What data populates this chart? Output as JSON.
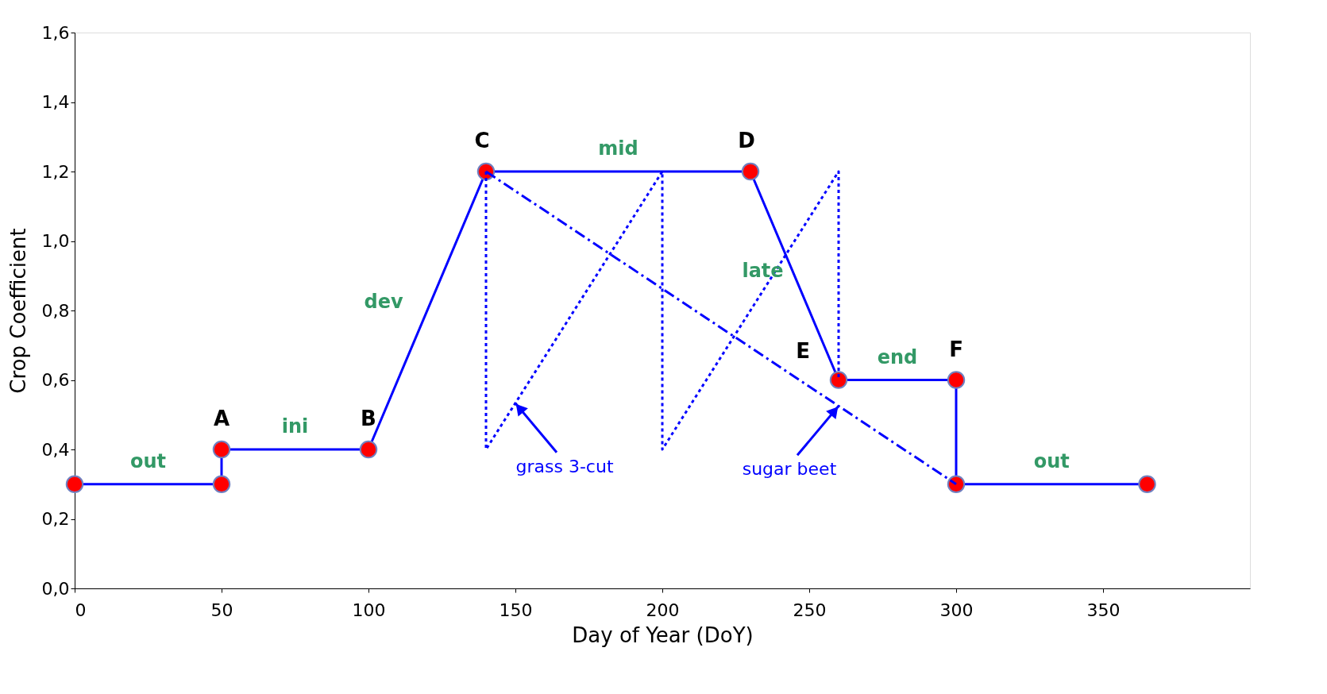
{
  "chart_data": {
    "type": "line",
    "xlabel": "Day of Year (DoY)",
    "ylabel": "Crop Coefficient",
    "xlim": [
      0,
      400
    ],
    "xticks": [
      0,
      50,
      100,
      150,
      200,
      250,
      300,
      350
    ],
    "ylim": [
      0,
      1.6
    ],
    "yticks": [
      {
        "value": 0,
        "label": "0,0"
      },
      {
        "value": 0.2,
        "label": "0,2"
      },
      {
        "value": 0.4,
        "label": "0,4"
      },
      {
        "value": 0.6,
        "label": "0,6"
      },
      {
        "value": 0.8,
        "label": "0,8"
      },
      {
        "value": 1.0,
        "label": "1,0"
      },
      {
        "value": 1.2,
        "label": "1,2"
      },
      {
        "value": 1.4,
        "label": "1,4"
      },
      {
        "value": 1.6,
        "label": "1,6"
      }
    ],
    "grid": false,
    "series": [
      {
        "color": "#0000ff",
        "marker": "circle",
        "line_style": "solid",
        "x": [
          0,
          50,
          50,
          100,
          140,
          230,
          260,
          300,
          300,
          365
        ],
        "values": [
          0.3,
          0.3,
          0.4,
          0.4,
          1.2,
          1.2,
          0.6,
          0.6,
          0.3,
          0.3
        ]
      },
      {
        "color": "#0000ff",
        "marker": "none",
        "line_style": "dotted",
        "x": [
          140,
          140,
          200,
          200,
          260,
          260
        ],
        "values": [
          1.2,
          0.4,
          1.2,
          0.4,
          1.2,
          0.6
        ]
      },
      {
        "color": "#0000ff",
        "marker": "none",
        "line_style": "dashed",
        "x": [
          140,
          300
        ],
        "values": [
          1.2,
          0.3
        ]
      }
    ],
    "annotations": [
      {
        "text": "A",
        "x": 50,
        "y": 0.4
      },
      {
        "text": "B",
        "x": 100,
        "y": 0.4
      },
      {
        "text": "C",
        "x": 140,
        "y": 1.2
      },
      {
        "text": "D",
        "x": 230,
        "y": 1.2
      },
      {
        "text": "E",
        "x": 260,
        "y": 0.6
      },
      {
        "text": "F",
        "x": 300,
        "y": 0.6
      },
      {
        "text": "out",
        "x": 25,
        "y": 0.3
      },
      {
        "text": "ini",
        "x": 75,
        "y": 0.4
      },
      {
        "text": "dev",
        "x": 120,
        "y": 0.8
      },
      {
        "text": "mid",
        "x": 185,
        "y": 1.2
      },
      {
        "text": "late",
        "x": 245,
        "y": 0.9
      },
      {
        "text": "end",
        "x": 280,
        "y": 0.6
      },
      {
        "text": "out",
        "x": 332.5,
        "y": 0.3
      },
      {
        "text": "grass 3-cut",
        "x": 150,
        "y": 0.533
      },
      {
        "text": "sugar beet",
        "x": 260,
        "y": 0.525
      }
    ]
  }
}
